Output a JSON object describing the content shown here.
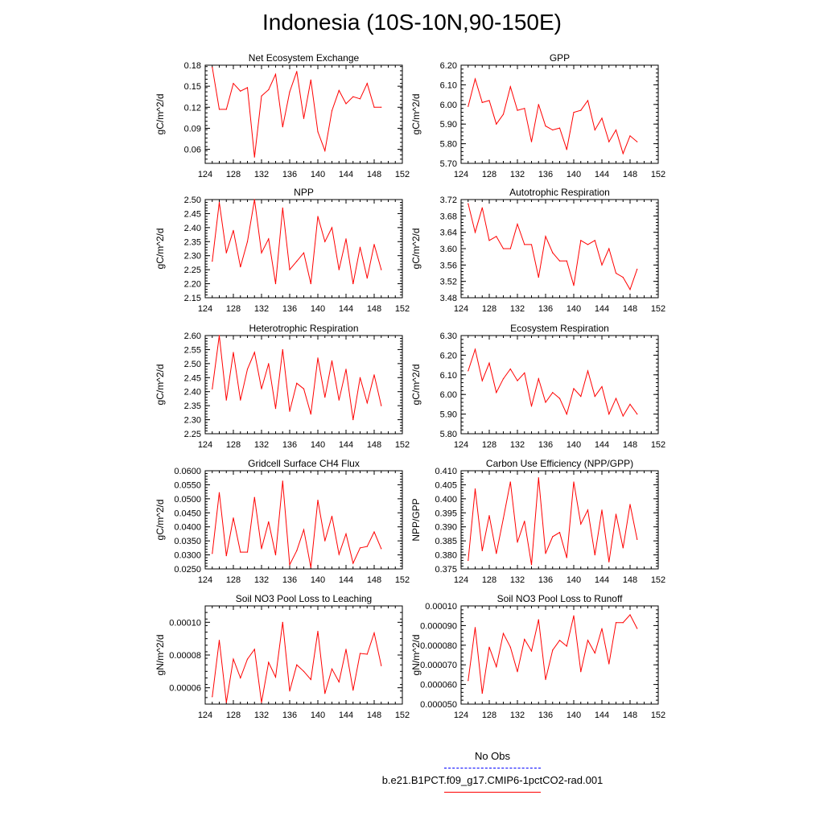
{
  "title": "Indonesia (10S-10N,90-150E)",
  "colors": {
    "model": "#ff0000",
    "obs": "#0000ff",
    "axis": "#000000"
  },
  "legend": [
    {
      "label": "No Obs",
      "color": "#0000ff",
      "style": "dashed"
    },
    {
      "label": "b.e21.B1PCT.f09_g17.CMIP6-1pctCO2-rad.001",
      "color": "#ff0000",
      "style": "solid"
    }
  ],
  "chart_data": [
    {
      "type": "line",
      "title": "Net Ecosystem Exchange",
      "ylabel": "gC/m^2/d",
      "xlim": [
        124,
        152
      ],
      "ylim": [
        0.04,
        0.18
      ],
      "xticks": [
        "124",
        "128",
        "132",
        "136",
        "140",
        "144",
        "148",
        "152"
      ],
      "yticks": [
        "0.06",
        "0.09",
        "0.12",
        "0.15",
        "0.18"
      ],
      "series": [
        {
          "x": [
            125,
            126,
            127,
            128,
            129,
            130,
            131,
            132,
            133,
            134,
            135,
            136,
            137,
            138,
            139,
            140,
            141,
            142,
            143,
            144,
            145,
            146,
            147,
            148,
            149
          ],
          "values": [
            0.177,
            0.117,
            0.117,
            0.154,
            0.143,
            0.148,
            0.049,
            0.136,
            0.145,
            0.167,
            0.092,
            0.142,
            0.171,
            0.104,
            0.159,
            0.085,
            0.058,
            0.115,
            0.144,
            0.125,
            0.135,
            0.132,
            0.154,
            0.12,
            0.12
          ]
        }
      ]
    },
    {
      "type": "line",
      "title": "GPP",
      "ylabel": "gC/m^2/d",
      "xlim": [
        124,
        152
      ],
      "ylim": [
        5.7,
        6.2
      ],
      "xticks": [
        "124",
        "128",
        "132",
        "136",
        "140",
        "144",
        "148",
        "152"
      ],
      "yticks": [
        "5.70",
        "5.80",
        "5.90",
        "6.00",
        "6.10",
        "6.20"
      ],
      "series": [
        {
          "x": [
            125,
            126,
            127,
            128,
            129,
            130,
            131,
            132,
            133,
            134,
            135,
            136,
            137,
            138,
            139,
            140,
            141,
            142,
            143,
            144,
            145,
            146,
            147,
            148,
            149
          ],
          "values": [
            5.99,
            6.13,
            6.01,
            6.02,
            5.9,
            5.95,
            6.09,
            5.97,
            5.98,
            5.81,
            6.0,
            5.89,
            5.87,
            5.88,
            5.77,
            5.96,
            5.97,
            6.02,
            5.87,
            5.93,
            5.81,
            5.87,
            5.75,
            5.84,
            5.81
          ]
        }
      ]
    },
    {
      "type": "line",
      "title": "NPP",
      "ylabel": "gC/m^2/d",
      "xlim": [
        124,
        152
      ],
      "ylim": [
        2.15,
        2.5
      ],
      "xticks": [
        "124",
        "128",
        "132",
        "136",
        "140",
        "144",
        "148",
        "152"
      ],
      "yticks": [
        "2.15",
        "2.20",
        "2.25",
        "2.30",
        "2.35",
        "2.40",
        "2.45",
        "2.50"
      ],
      "series": [
        {
          "x": [
            125,
            126,
            127,
            128,
            129,
            130,
            131,
            132,
            133,
            134,
            135,
            136,
            137,
            138,
            139,
            140,
            141,
            142,
            143,
            144,
            145,
            146,
            147,
            148,
            149
          ],
          "values": [
            2.28,
            2.49,
            2.31,
            2.39,
            2.26,
            2.35,
            2.5,
            2.31,
            2.36,
            2.2,
            2.47,
            2.25,
            2.28,
            2.31,
            2.2,
            2.44,
            2.35,
            2.4,
            2.25,
            2.36,
            2.2,
            2.33,
            2.22,
            2.34,
            2.25
          ]
        }
      ]
    },
    {
      "type": "line",
      "title": "Autotrophic Respiration",
      "ylabel": "gC/m^2/d",
      "xlim": [
        124,
        152
      ],
      "ylim": [
        3.48,
        3.72
      ],
      "xticks": [
        "124",
        "128",
        "132",
        "136",
        "140",
        "144",
        "148",
        "152"
      ],
      "yticks": [
        "3.48",
        "3.52",
        "3.56",
        "3.60",
        "3.64",
        "3.68",
        "3.72"
      ],
      "series": [
        {
          "x": [
            125,
            126,
            127,
            128,
            129,
            130,
            131,
            132,
            133,
            134,
            135,
            136,
            137,
            138,
            139,
            140,
            141,
            142,
            143,
            144,
            145,
            146,
            147,
            148,
            149
          ],
          "values": [
            3.71,
            3.64,
            3.7,
            3.62,
            3.63,
            3.6,
            3.6,
            3.66,
            3.61,
            3.61,
            3.53,
            3.63,
            3.59,
            3.57,
            3.57,
            3.51,
            3.62,
            3.61,
            3.62,
            3.56,
            3.6,
            3.54,
            3.53,
            3.5,
            3.55
          ]
        }
      ]
    },
    {
      "type": "line",
      "title": "Heterotrophic Respiration",
      "ylabel": "gC/m^2/d",
      "xlim": [
        124,
        152
      ],
      "ylim": [
        2.25,
        2.6
      ],
      "xticks": [
        "124",
        "128",
        "132",
        "136",
        "140",
        "144",
        "148",
        "152"
      ],
      "yticks": [
        "2.25",
        "2.30",
        "2.35",
        "2.40",
        "2.45",
        "2.50",
        "2.55",
        "2.60"
      ],
      "series": [
        {
          "x": [
            125,
            126,
            127,
            128,
            129,
            130,
            131,
            132,
            133,
            134,
            135,
            136,
            137,
            138,
            139,
            140,
            141,
            142,
            143,
            144,
            145,
            146,
            147,
            148,
            149
          ],
          "values": [
            2.41,
            2.6,
            2.37,
            2.54,
            2.37,
            2.48,
            2.54,
            2.41,
            2.5,
            2.34,
            2.55,
            2.33,
            2.43,
            2.41,
            2.32,
            2.52,
            2.38,
            2.51,
            2.37,
            2.48,
            2.3,
            2.45,
            2.36,
            2.46,
            2.35
          ]
        }
      ]
    },
    {
      "type": "line",
      "title": "Ecosystem Respiration",
      "ylabel": "gC/m^2/d",
      "xlim": [
        124,
        152
      ],
      "ylim": [
        5.8,
        6.3
      ],
      "xticks": [
        "124",
        "128",
        "132",
        "136",
        "140",
        "144",
        "148",
        "152"
      ],
      "yticks": [
        "5.80",
        "5.90",
        "6.00",
        "6.10",
        "6.20",
        "6.30"
      ],
      "series": [
        {
          "x": [
            125,
            126,
            127,
            128,
            129,
            130,
            131,
            132,
            133,
            134,
            135,
            136,
            137,
            138,
            139,
            140,
            141,
            142,
            143,
            144,
            145,
            146,
            147,
            148,
            149
          ],
          "values": [
            6.12,
            6.23,
            6.07,
            6.16,
            6.01,
            6.08,
            6.13,
            6.07,
            6.11,
            5.94,
            6.08,
            5.96,
            6.01,
            5.98,
            5.9,
            6.03,
            5.99,
            6.12,
            5.99,
            6.04,
            5.9,
            5.98,
            5.89,
            5.95,
            5.9
          ]
        }
      ]
    },
    {
      "type": "line",
      "title": "Gridcell Surface CH4 Flux",
      "ylabel": "gC/m^2/d",
      "xlim": [
        124,
        152
      ],
      "ylim": [
        0.025,
        0.06
      ],
      "xticks": [
        "124",
        "128",
        "132",
        "136",
        "140",
        "144",
        "148",
        "152"
      ],
      "yticks": [
        "0.0250",
        "0.0300",
        "0.0350",
        "0.0400",
        "0.0450",
        "0.0500",
        "0.0550",
        "0.0600"
      ],
      "series": [
        {
          "x": [
            125,
            126,
            127,
            128,
            129,
            130,
            131,
            132,
            133,
            134,
            135,
            136,
            137,
            138,
            139,
            140,
            141,
            142,
            143,
            144,
            145,
            146,
            147,
            148,
            149
          ],
          "values": [
            0.0305,
            0.0522,
            0.0297,
            0.0432,
            0.031,
            0.031,
            0.0505,
            0.0322,
            0.0418,
            0.03,
            0.0563,
            0.0265,
            0.0315,
            0.039,
            0.0255,
            0.0495,
            0.035,
            0.0438,
            0.0302,
            0.0375,
            0.027,
            0.0325,
            0.033,
            0.0382,
            0.0322
          ]
        }
      ]
    },
    {
      "type": "line",
      "title": "Carbon Use Efficiency (NPP/GPP)",
      "ylabel": "NPP/GPP",
      "xlim": [
        124,
        152
      ],
      "ylim": [
        0.375,
        0.41
      ],
      "xticks": [
        "124",
        "128",
        "132",
        "136",
        "140",
        "144",
        "148",
        "152"
      ],
      "yticks": [
        "0.375",
        "0.380",
        "0.385",
        "0.390",
        "0.395",
        "0.400",
        "0.405",
        "0.410"
      ],
      "series": [
        {
          "x": [
            125,
            126,
            127,
            128,
            129,
            130,
            131,
            132,
            133,
            134,
            135,
            136,
            137,
            138,
            139,
            140,
            141,
            142,
            143,
            144,
            145,
            146,
            147,
            148,
            149
          ],
          "values": [
            0.378,
            0.4035,
            0.3815,
            0.394,
            0.3805,
            0.393,
            0.406,
            0.3845,
            0.392,
            0.3765,
            0.4075,
            0.3805,
            0.3865,
            0.388,
            0.379,
            0.406,
            0.391,
            0.396,
            0.38,
            0.396,
            0.3775,
            0.3945,
            0.3825,
            0.398,
            0.3855
          ]
        }
      ]
    },
    {
      "type": "line",
      "title": "Soil NO3 Pool Loss to Leaching",
      "ylabel": "gN/m^2/d",
      "xlim": [
        124,
        152
      ],
      "ylim": [
        5e-05,
        0.00011
      ],
      "xticks": [
        "124",
        "128",
        "132",
        "136",
        "140",
        "144",
        "148",
        "152"
      ],
      "yticks": [
        "0.00006",
        "0.00008",
        "0.00010"
      ],
      "series": [
        {
          "x": [
            125,
            126,
            127,
            128,
            129,
            130,
            131,
            132,
            133,
            134,
            135,
            136,
            137,
            138,
            139,
            140,
            141,
            142,
            143,
            144,
            145,
            146,
            147,
            148,
            149
          ],
          "values": [
            5.45e-05,
            8.9e-05,
            5.1e-05,
            7.75e-05,
            6.6e-05,
            7.75e-05,
            8.35e-05,
            5.1e-05,
            7.55e-05,
            6.65e-05,
            0.0001,
            5.8e-05,
            7.4e-05,
            7e-05,
            6.5e-05,
            9.45e-05,
            5.65e-05,
            7.15e-05,
            6.35e-05,
            8.35e-05,
            5.85e-05,
            8.1e-05,
            8.05e-05,
            9.35e-05,
            7.35e-05
          ]
        }
      ]
    },
    {
      "type": "line",
      "title": "Soil NO3 Pool Loss to Runoff",
      "ylabel": "gN/m^2/d",
      "xlim": [
        124,
        152
      ],
      "ylim": [
        5e-05,
        0.0001
      ],
      "xticks": [
        "124",
        "128",
        "132",
        "136",
        "140",
        "144",
        "148",
        "152"
      ],
      "yticks": [
        "0.000050",
        "0.000060",
        "0.000070",
        "0.000080",
        "0.000090",
        "0.00010"
      ],
      "series": [
        {
          "x": [
            125,
            126,
            127,
            128,
            129,
            130,
            131,
            132,
            133,
            134,
            135,
            136,
            137,
            138,
            139,
            140,
            141,
            142,
            143,
            144,
            145,
            146,
            147,
            148,
            149
          ],
          "values": [
            6.2e-05,
            8.9e-05,
            5.55e-05,
            7.9e-05,
            6.9e-05,
            8.6e-05,
            7.9e-05,
            6.65e-05,
            8.3e-05,
            7.7e-05,
            9.3e-05,
            6.25e-05,
            7.75e-05,
            8.25e-05,
            7.95e-05,
            9.5e-05,
            6.65e-05,
            8.25e-05,
            7.6e-05,
            8.85e-05,
            7.05e-05,
            9.15e-05,
            9.15e-05,
            9.55e-05,
            8.85e-05
          ]
        }
      ]
    }
  ]
}
